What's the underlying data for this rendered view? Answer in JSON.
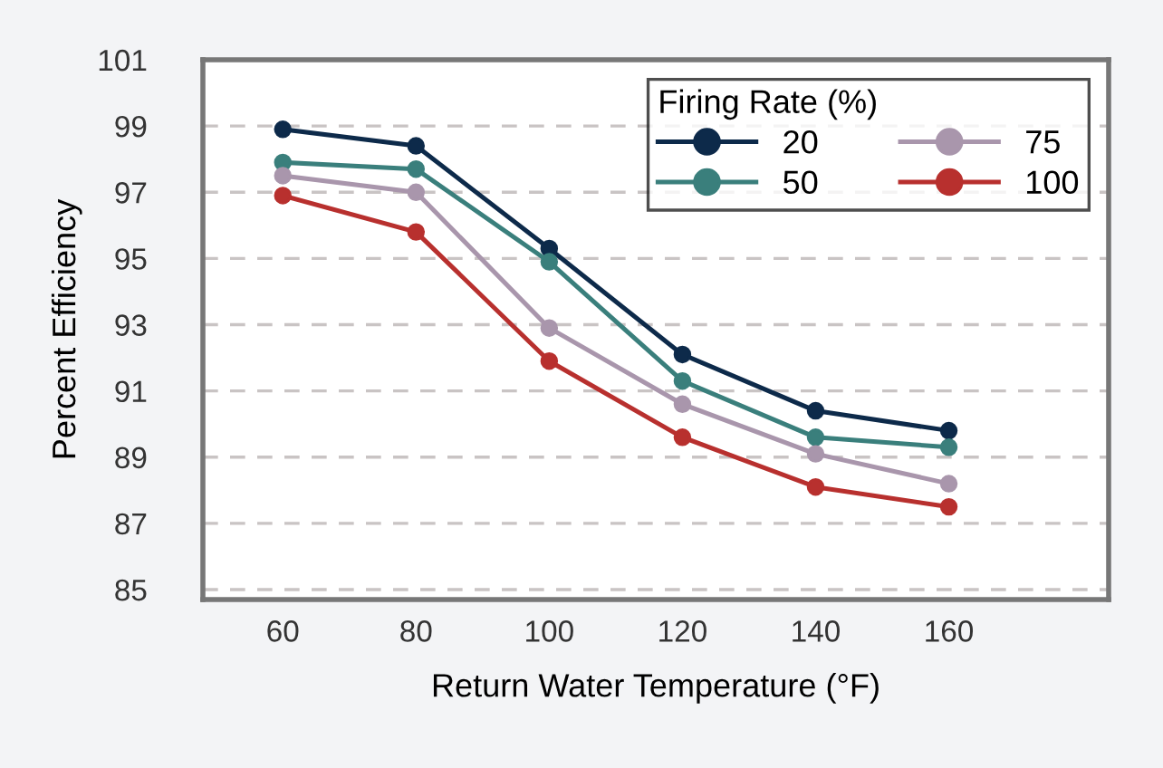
{
  "chart_data": {
    "type": "line",
    "xlabel": "Return Water Temperature (°F)",
    "ylabel": "Percent Efficiency",
    "legend_title": "Firing Rate (%)",
    "x": [
      60,
      80,
      100,
      120,
      140,
      160
    ],
    "series": [
      {
        "name": "20",
        "color": "#0d2a4a",
        "values": [
          98.9,
          98.4,
          95.3,
          92.1,
          90.4,
          89.8
        ]
      },
      {
        "name": "50",
        "color": "#3a7f7c",
        "values": [
          97.9,
          97.7,
          94.9,
          91.3,
          89.6,
          89.3
        ]
      },
      {
        "name": "75",
        "color": "#a996ac",
        "values": [
          97.5,
          97.0,
          92.9,
          90.6,
          89.1,
          88.2
        ]
      },
      {
        "name": "100",
        "color": "#b8302e",
        "values": [
          96.9,
          95.8,
          91.9,
          89.6,
          88.1,
          87.5
        ]
      }
    ],
    "xlim": [
      48,
      184
    ],
    "xticks": [
      60,
      80,
      100,
      120,
      140,
      160
    ],
    "ylim": [
      84.7,
      101
    ],
    "yticks": [
      85,
      87,
      89,
      91,
      93,
      95,
      97,
      99,
      101
    ],
    "grid": "y",
    "legend": "top right",
    "marker": "circle",
    "line_style": "solid"
  }
}
